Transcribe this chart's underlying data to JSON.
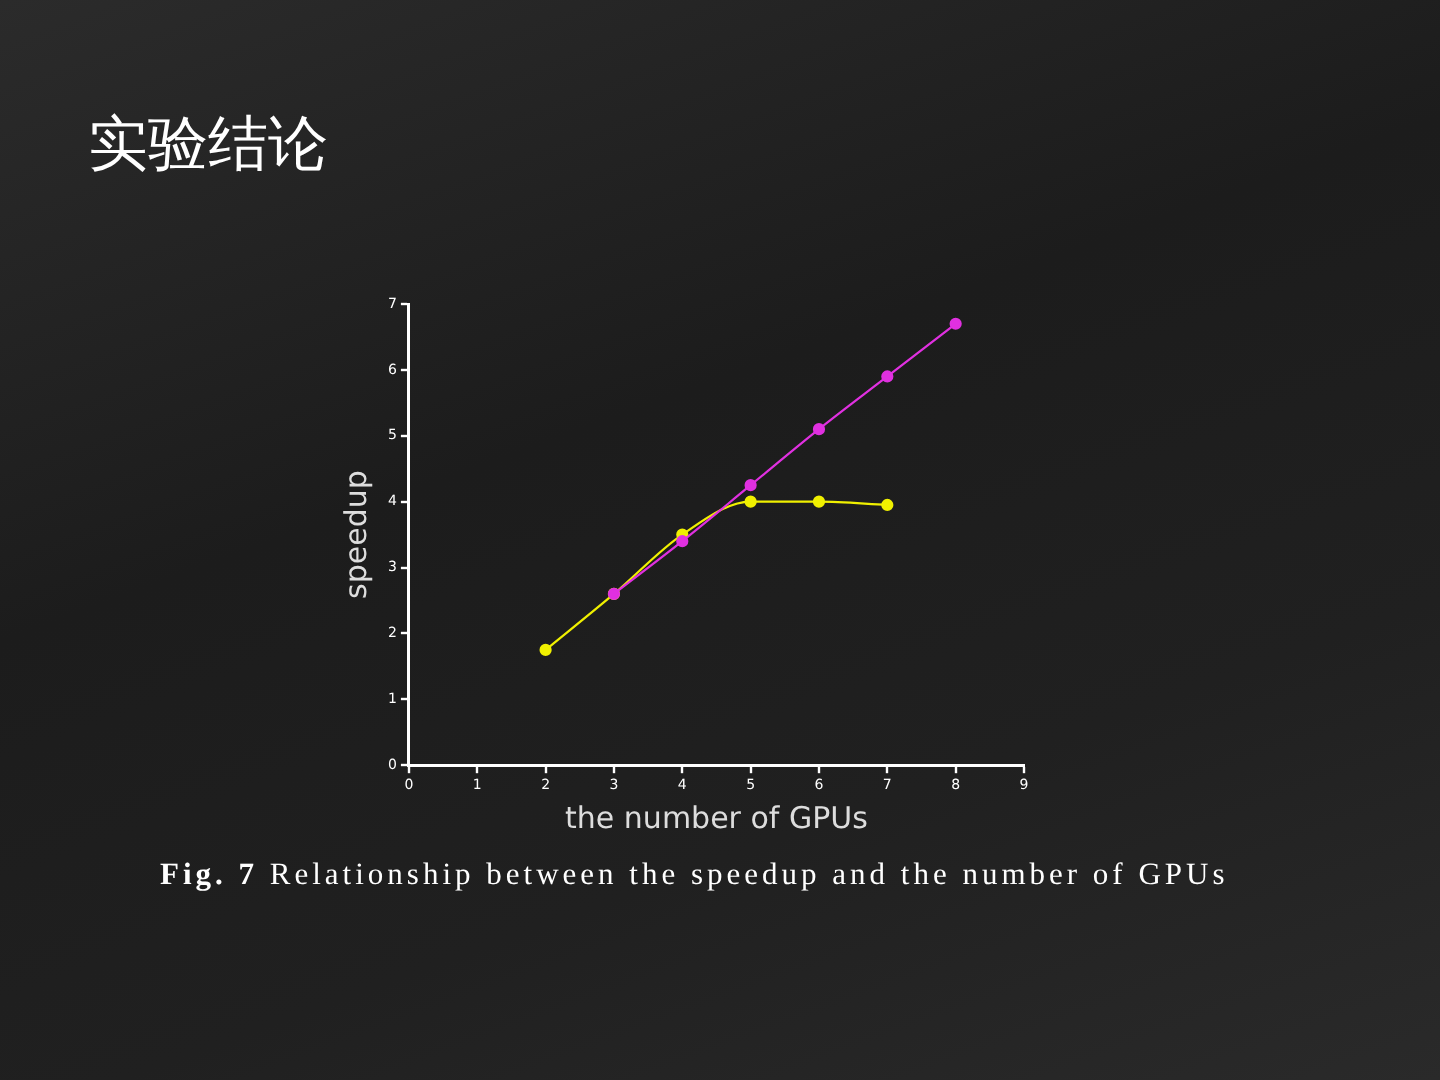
{
  "chart_data": {
    "type": "line",
    "title": "实验结论",
    "xlabel": "the number of GPUs",
    "ylabel": "speedup",
    "annotations": [
      "Fig. 7 Relationship between the speedup and the number of GPUs"
    ],
    "series": [
      {
        "color": "#e030e0",
        "x": [
          3,
          4,
          5,
          6,
          7,
          8
        ],
        "values": [
          2.6,
          3.4,
          4.25,
          5.1,
          5.9,
          6.7
        ]
      },
      {
        "color": "#f0f000",
        "x": [
          2,
          3,
          4,
          5,
          6,
          7
        ],
        "values": [
          1.75,
          2.6,
          3.5,
          4.0,
          4.0,
          3.95
        ]
      }
    ],
    "xlim": [
      0,
      9
    ],
    "xticks": [
      0,
      1,
      2,
      3,
      4,
      5,
      6,
      7,
      8,
      9
    ],
    "ylim": [
      0,
      7
    ],
    "yticks": [
      0,
      1,
      2,
      3,
      4,
      5,
      6,
      7
    ],
    "marker": "circle",
    "line_style": "solid"
  }
}
